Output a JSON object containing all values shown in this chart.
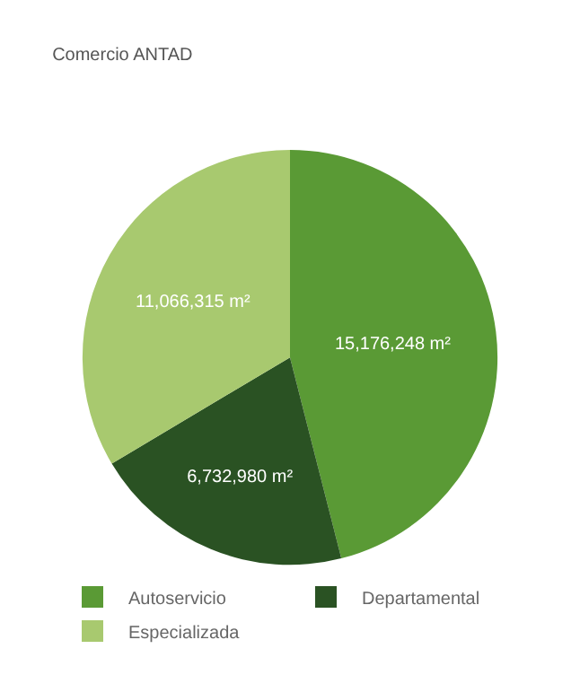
{
  "chart_data": {
    "type": "pie",
    "title": "Comercio ANTAD",
    "categories": [
      "Autoservicio",
      "Departamental",
      "Especializada"
    ],
    "values": [
      15176248,
      6732980,
      11066315
    ],
    "value_labels": [
      "15,176,248 m²",
      "6,732,980 m²",
      "11,066,315 m²"
    ],
    "colors": [
      "#5a9a35",
      "#2a5223",
      "#a8c96f"
    ],
    "legend": "bottom"
  }
}
